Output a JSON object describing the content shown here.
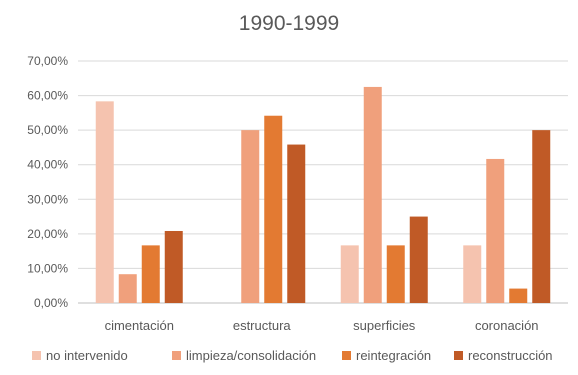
{
  "chart_data": {
    "type": "bar",
    "title": "1990-1999",
    "xlabel": "",
    "ylabel": "",
    "categories": [
      "cimentación",
      "estructura",
      "superficies",
      "coronación"
    ],
    "ylim": [
      0,
      70
    ],
    "y_ticks": [
      0,
      10,
      20,
      30,
      40,
      50,
      60,
      70
    ],
    "y_tick_labels": [
      "0,00%",
      "10,00%",
      "20,00%",
      "30,00%",
      "40,00%",
      "50,00%",
      "60,00%",
      "70,00%"
    ],
    "y_unit": "%",
    "grid": true,
    "legend_position": "bottom",
    "series": [
      {
        "name": "no intervenido",
        "color": "#f5c3af",
        "values": [
          58.33,
          0,
          16.67,
          16.67
        ]
      },
      {
        "name": "limpieza/consolidación",
        "color": "#f0a07c",
        "values": [
          8.33,
          50.0,
          62.5,
          41.67
        ]
      },
      {
        "name": "reintegración",
        "color": "#e37a32",
        "values": [
          16.67,
          54.17,
          16.67,
          4.17
        ]
      },
      {
        "name": "reconstrucción",
        "color": "#c05a26",
        "values": [
          20.83,
          45.83,
          25.0,
          50.0
        ]
      }
    ]
  }
}
